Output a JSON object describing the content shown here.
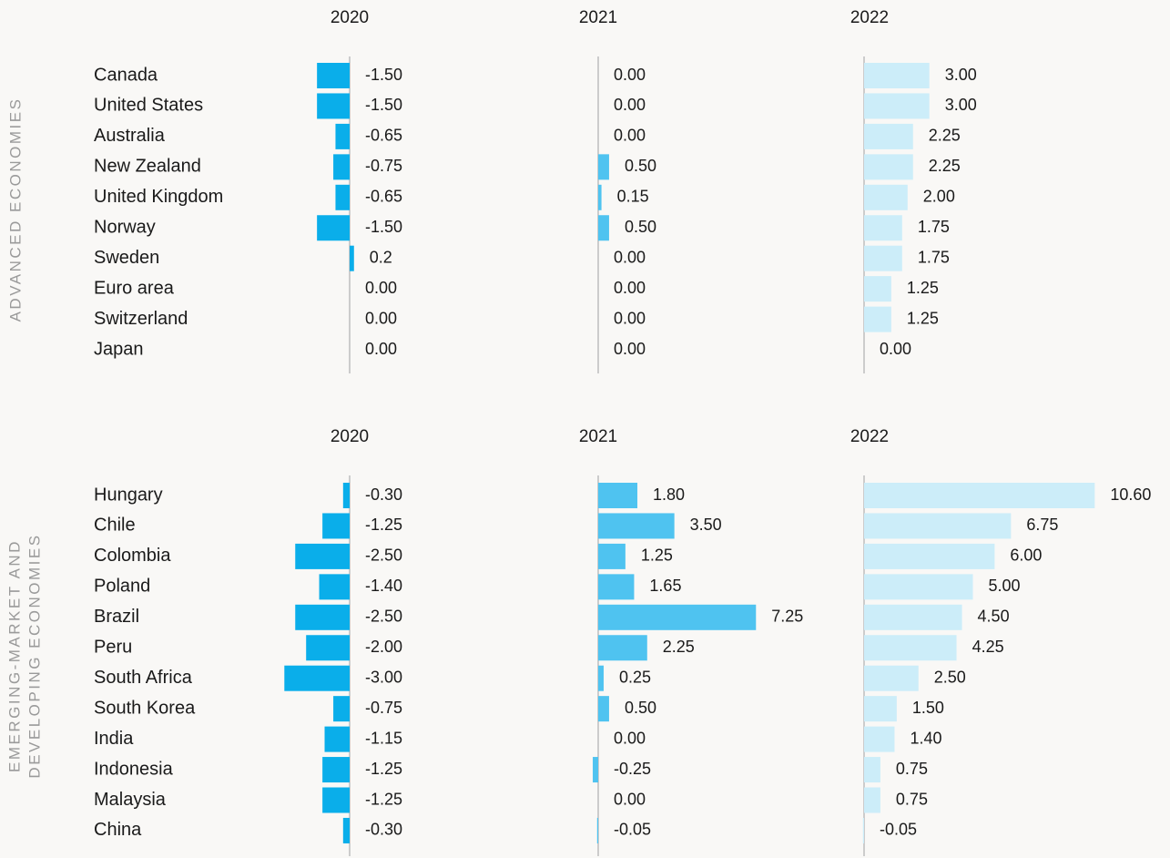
{
  "chart_data": {
    "type": "bar",
    "groups": [
      {
        "label": [
          "ADVANCED ECONOMIES"
        ],
        "categories": [
          "Canada",
          "United States",
          "Australia",
          "New Zealand",
          "United Kingdom",
          "Norway",
          "Sweden",
          "Euro area",
          "Switzerland",
          "Japan"
        ],
        "series": [
          {
            "name": "2020",
            "color": "#0aaeea",
            "values": [
              -1.5,
              -1.5,
              -0.65,
              -0.75,
              -0.65,
              -1.5,
              0.2,
              0,
              0,
              0
            ],
            "value_labels": [
              "-1.50",
              "-1.50",
              "-0.65",
              "-0.75",
              "-0.65",
              "-1.50",
              "0.2",
              "0.00",
              "0.00",
              "0.00"
            ]
          },
          {
            "name": "2021",
            "color": "#4fc3f0",
            "values": [
              0,
              0,
              0,
              0.5,
              0.15,
              0.5,
              0,
              0,
              0,
              0
            ],
            "value_labels": [
              "0.00",
              "0.00",
              "0.00",
              "0.50",
              "0.15",
              "0.50",
              "0.00",
              "0.00",
              "0.00",
              "0.00"
            ]
          },
          {
            "name": "2022",
            "color": "#ccedf9",
            "values": [
              3,
              3,
              2.25,
              2.25,
              2,
              1.75,
              1.75,
              1.25,
              1.25,
              0
            ],
            "value_labels": [
              "3.00",
              "3.00",
              "2.25",
              "2.25",
              "2.00",
              "1.75",
              "1.75",
              "1.25",
              "1.25",
              "0.00"
            ]
          }
        ]
      },
      {
        "label": [
          "EMERGING-MARKET AND",
          "DEVELOPING ECONOMIES"
        ],
        "categories": [
          "Hungary",
          "Chile",
          "Colombia",
          "Poland",
          "Brazil",
          "Peru",
          "South Africa",
          "South Korea",
          "India",
          "Indonesia",
          "Malaysia",
          "China"
        ],
        "series": [
          {
            "name": "2020",
            "color": "#0aaeea",
            "values": [
              -0.3,
              -1.25,
              -2.5,
              -1.4,
              -2.5,
              -2,
              -3,
              -0.75,
              -1.15,
              -1.25,
              -1.25,
              -0.3
            ],
            "value_labels": [
              "-0.30",
              "-1.25",
              "-2.50",
              "-1.40",
              "-2.50",
              "-2.00",
              "-3.00",
              "-0.75",
              "-1.15",
              "-1.25",
              "-1.25",
              "-0.30"
            ]
          },
          {
            "name": "2021",
            "color": "#4fc3f0",
            "values": [
              1.8,
              3.5,
              1.25,
              1.65,
              7.25,
              2.25,
              0.25,
              0.5,
              0,
              -0.25,
              0,
              -0.05
            ],
            "value_labels": [
              "1.80",
              "3.50",
              "1.25",
              "1.65",
              "7.25",
              "2.25",
              "0.25",
              "0.50",
              "0.00",
              "-0.25",
              "0.00",
              "-0.05"
            ]
          },
          {
            "name": "2022",
            "color": "#ccedf9",
            "values": [
              10.6,
              6.75,
              6,
              5,
              4.5,
              4.25,
              2.5,
              1.5,
              1.4,
              0.75,
              0.75,
              -0.05
            ],
            "value_labels": [
              "10.60",
              "6.75",
              "6.00",
              "5.00",
              "4.50",
              "4.25",
              "2.50",
              "1.50",
              "1.40",
              "0.75",
              "0.75",
              "-0.05"
            ]
          }
        ]
      }
    ]
  }
}
